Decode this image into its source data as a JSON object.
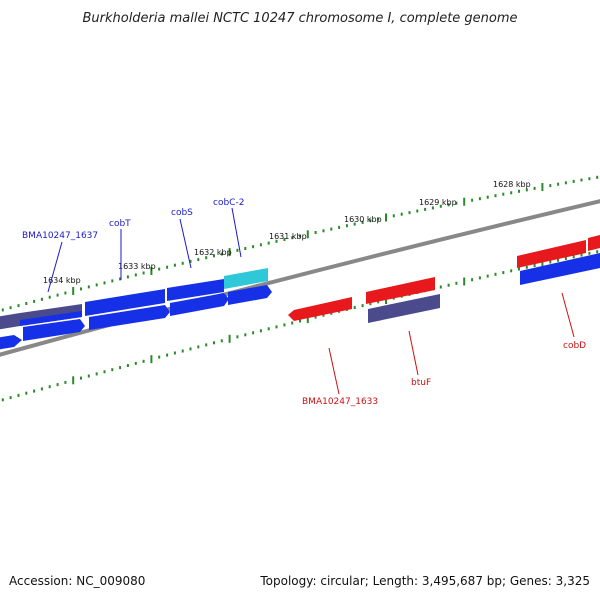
{
  "title": "Burkholderia mallei NCTC 10247 chromosome I, complete genome",
  "footer": {
    "accession": "Accession: NC_009080",
    "topology": "Topology: circular; Length: 3,495,687 bp; Genes: 3,325"
  },
  "colors": {
    "forward_gene": "#e8191c",
    "reverse_gene": "#1530e6",
    "highlight_gene": "#2ec8d8",
    "dark_gene": "#4a4a8c",
    "backbone": "#888888",
    "ticks": "#2a8a2a",
    "forward_label": "#cc1111",
    "reverse_label": "#1a1acc"
  },
  "scale_labels": [
    "1634 kbp",
    "1633 kbp",
    "1632 kbp",
    "1631 kbp",
    "1630 kbp",
    "1629 kbp",
    "1628 kbp"
  ],
  "reverse_labels": [
    "BMA10247_1637",
    "cobT",
    "cobS",
    "cobC-2"
  ],
  "forward_labels": [
    "BMA10247_1633",
    "btuF",
    "cobD"
  ]
}
